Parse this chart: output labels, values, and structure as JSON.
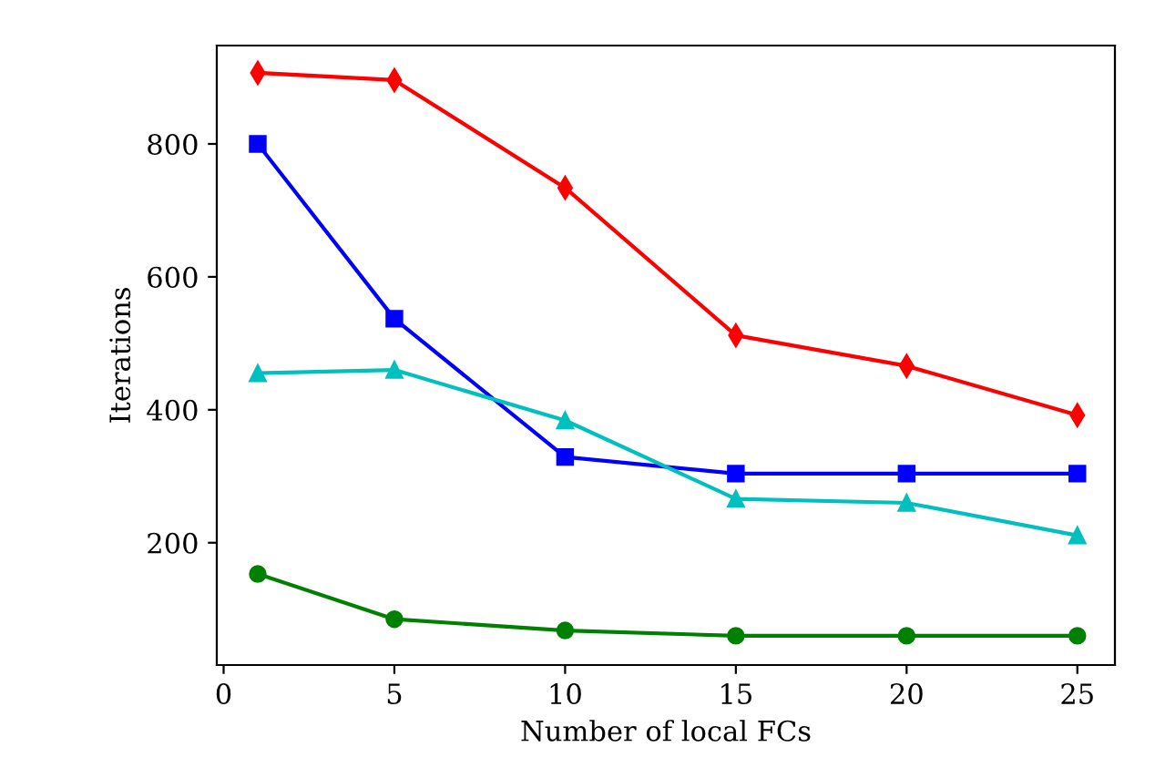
{
  "chart_data": {
    "type": "line",
    "xlabel": "Number of local FCs",
    "ylabel": "Iterations",
    "x": [
      1,
      5,
      10,
      15,
      20,
      25
    ],
    "series": [
      {
        "color": "#ff0000",
        "marker": "diamond",
        "values": [
          907,
          896,
          734,
          512,
          466,
          392
        ]
      },
      {
        "color": "#0000ff",
        "marker": "square",
        "values": [
          800,
          537,
          329,
          304,
          304,
          304
        ]
      },
      {
        "color": "#00bfbf",
        "marker": "triangle",
        "values": [
          455,
          460,
          384,
          266,
          260,
          211
        ]
      },
      {
        "color": "#008000",
        "marker": "circle",
        "values": [
          153,
          85,
          68,
          60,
          60,
          60
        ]
      }
    ],
    "xlim": [
      -0.2,
      26.1
    ],
    "ylim": [
      16,
      948
    ],
    "xticks": [
      0,
      5,
      10,
      15,
      20,
      25
    ],
    "yticks": [
      200,
      400,
      600,
      800
    ],
    "grid": false
  }
}
